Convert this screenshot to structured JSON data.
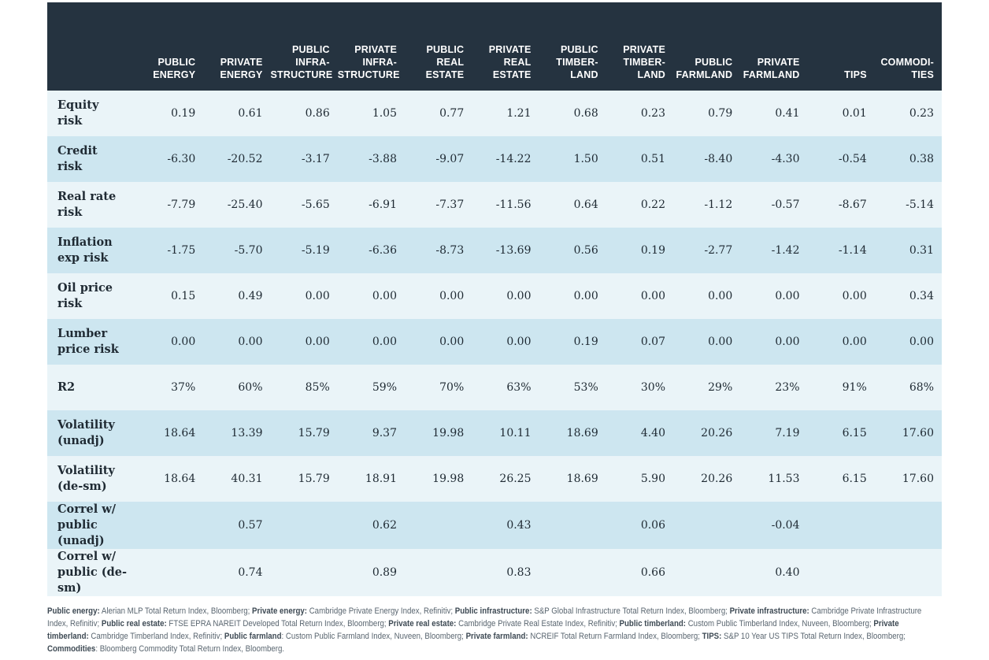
{
  "columns": [
    [
      "PUBLIC",
      "ENERGY"
    ],
    [
      "PRIVATE",
      "ENERGY"
    ],
    [
      "PUBLIC",
      "INFRA-",
      "STRUCTURE"
    ],
    [
      "PRIVATE",
      "INFRA-",
      "STRUCTURE"
    ],
    [
      "PUBLIC",
      "REAL",
      "ESTATE"
    ],
    [
      "PRIVATE",
      "REAL",
      "ESTATE"
    ],
    [
      "PUBLIC",
      "TIMBER-",
      "LAND"
    ],
    [
      "PRIVATE",
      "TIMBER-",
      "LAND"
    ],
    [
      "PUBLIC",
      "FARMLAND"
    ],
    [
      "PRIVATE",
      "FARMLAND"
    ],
    [
      "TIPS"
    ],
    [
      "COMMODI-",
      "TIES"
    ]
  ],
  "rows": [
    {
      "label": [
        "Equity",
        "risk"
      ],
      "values": [
        "0.19",
        "0.61",
        "0.86",
        "1.05",
        "0.77",
        "1.21",
        "0.68",
        "0.23",
        "0.79",
        "0.41",
        "0.01",
        "0.23"
      ]
    },
    {
      "label": [
        "Credit",
        "risk"
      ],
      "values": [
        "-6.30",
        "-20.52",
        "-3.17",
        "-3.88",
        "-9.07",
        "-14.22",
        "1.50",
        "0.51",
        "-8.40",
        "-4.30",
        "-0.54",
        "0.38"
      ]
    },
    {
      "label": [
        "Real rate",
        "risk"
      ],
      "values": [
        "-7.79",
        "-25.40",
        "-5.65",
        "-6.91",
        "-7.37",
        "-11.56",
        "0.64",
        "0.22",
        "-1.12",
        "-0.57",
        "-8.67",
        "-5.14"
      ]
    },
    {
      "label": [
        "Inflation",
        "exp risk"
      ],
      "values": [
        "-1.75",
        "-5.70",
        "-5.19",
        "-6.36",
        "-8.73",
        "-13.69",
        "0.56",
        "0.19",
        "-2.77",
        "-1.42",
        "-1.14",
        "0.31"
      ]
    },
    {
      "label": [
        "Oil price",
        "risk"
      ],
      "values": [
        "0.15",
        "0.49",
        "0.00",
        "0.00",
        "0.00",
        "0.00",
        "0.00",
        "0.00",
        "0.00",
        "0.00",
        "0.00",
        "0.34"
      ]
    },
    {
      "label": [
        "Lumber",
        "price risk"
      ],
      "values": [
        "0.00",
        "0.00",
        "0.00",
        "0.00",
        "0.00",
        "0.00",
        "0.19",
        "0.07",
        "0.00",
        "0.00",
        "0.00",
        "0.00"
      ]
    },
    {
      "label": [
        "R2"
      ],
      "values": [
        "37%",
        "60%",
        "85%",
        "59%",
        "70%",
        "63%",
        "53%",
        "30%",
        "29%",
        "23%",
        "91%",
        "68%"
      ]
    },
    {
      "label": [
        "Volatility",
        "(unadj)"
      ],
      "values": [
        "18.64",
        "13.39",
        "15.79",
        "9.37",
        "19.98",
        "10.11",
        "18.69",
        "4.40",
        "20.26",
        "7.19",
        "6.15",
        "17.60"
      ]
    },
    {
      "label": [
        "Volatility",
        "(de-sm)"
      ],
      "values": [
        "18.64",
        "40.31",
        "15.79",
        "18.91",
        "19.98",
        "26.25",
        "18.69",
        "5.90",
        "20.26",
        "11.53",
        "6.15",
        "17.60"
      ]
    },
    {
      "label": [
        "Correl w/",
        "public (unadj)"
      ],
      "values": [
        "",
        "0.57",
        "",
        "0.62",
        "",
        "0.43",
        "",
        "0.06",
        "",
        "-0.04",
        "",
        ""
      ]
    },
    {
      "label": [
        "Correl w/",
        "public (de-sm)"
      ],
      "values": [
        "",
        "0.74",
        "",
        "0.89",
        "",
        "0.83",
        "",
        "0.66",
        "",
        "0.40",
        "",
        ""
      ]
    }
  ],
  "footnote": [
    {
      "name": "Public energy:",
      "text": " Alerian MLP Total Return Index, Bloomberg; "
    },
    {
      "name": "Private energy:",
      "text": " Cambridge Private Energy Index, Refinitiv; "
    },
    {
      "name": "Public infrastructure:",
      "text": " S&P Global Infrastructure Total Return Index, Bloomberg; "
    },
    {
      "name": "Private infrastructure:",
      "text": " Cambridge Private Infrastructure Index, Refinitiv; "
    },
    {
      "name": "Public real estate:",
      "text": " FTSE EPRA NAREIT Developed Total Return Index, Bloomberg; "
    },
    {
      "name": "Private real estate:",
      "text": " Cambridge Private Real Estate Index, Refinitiv; "
    },
    {
      "name": "Public timberland:",
      "text": " Custom Public Timberland Index, Nuveen, Bloomberg; "
    },
    {
      "name": "Private timberland:",
      "text": " Cambridge Timberland Index, Refinitiv; "
    },
    {
      "name": "Public farmland",
      "text": ": Custom Public Farmland Index, Nuveen, Bloomberg; "
    },
    {
      "name": "Private farmland:",
      "text": " NCREIF Total Return Farmland Index, Bloomberg; "
    },
    {
      "name": "TIPS:",
      "text": " S&P 10 Year US TIPS Total Return Index, Bloomberg; "
    },
    {
      "name": "Commodities",
      "text": ": Bloomberg Commodity Total Return Index, Bloomberg."
    }
  ]
}
